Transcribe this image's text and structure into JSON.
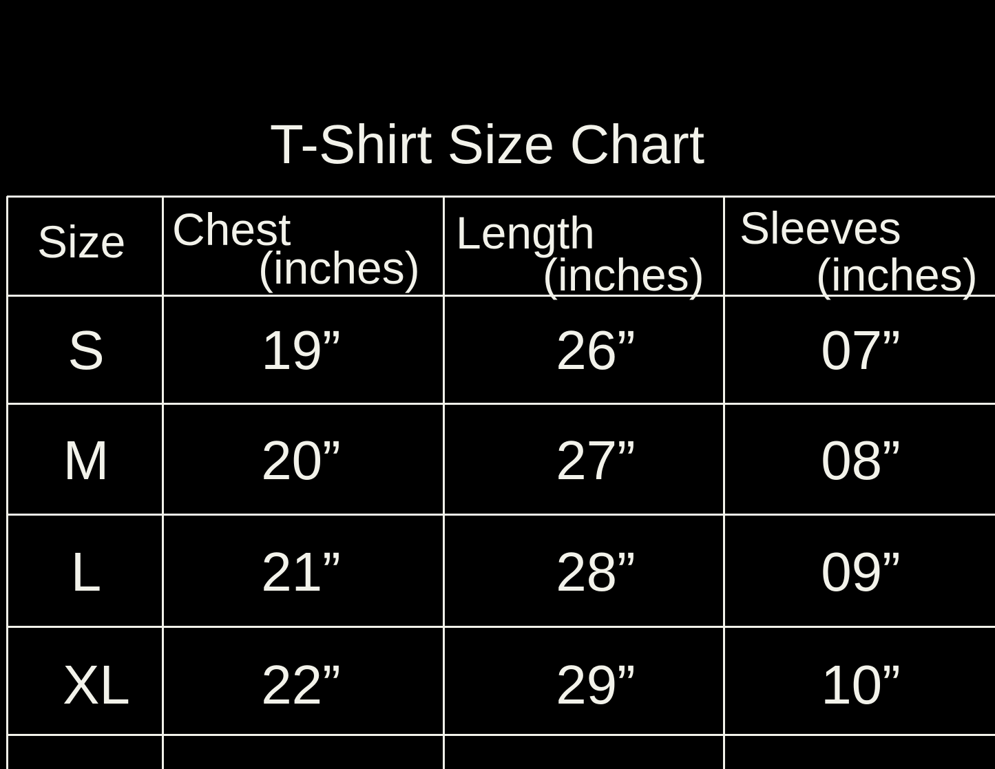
{
  "title": "T-Shirt Size Chart",
  "table": {
    "header": [
      {
        "label": "Size"
      },
      {
        "label": "Chest",
        "unit": "(inches)"
      },
      {
        "label": "Length",
        "unit": "(inches)"
      },
      {
        "label": "Sleeves",
        "unit": "(inches)"
      }
    ],
    "rows": [
      [
        "S",
        "19”",
        "26”",
        "07”"
      ],
      [
        "M",
        "20”",
        "27”",
        "08”"
      ],
      [
        "L",
        "21”",
        "28”",
        "09”"
      ],
      [
        "XL",
        "22”",
        "29”",
        "10”"
      ]
    ]
  }
}
